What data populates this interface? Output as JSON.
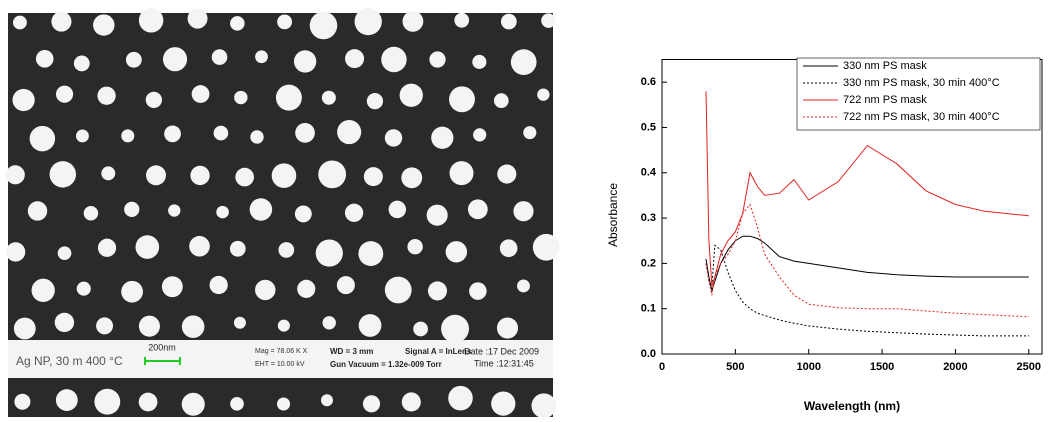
{
  "sem_image": {
    "caption": "Ag NP, 30 m 400 °C",
    "scale_bar": "200nm",
    "mag": "Mag = 78.06 K X",
    "eht": "EHT = 10.00 kV",
    "wd": "WD = 3 mm",
    "signal": "Signal A = InLens",
    "date": "Date :17 Dec 2009",
    "vacuum": "Gun Vacuum = 1.32e-009 Torr",
    "time": "Time :12:31:45"
  },
  "chart_data": {
    "type": "line",
    "x_label": "Wavelength (nm)",
    "y_label": "Absorbance",
    "x": [
      300,
      320,
      340,
      360,
      400,
      450,
      500,
      550,
      600,
      650,
      700,
      800,
      900,
      1000,
      1200,
      1400,
      1600,
      1800,
      2000,
      2200,
      2500
    ],
    "series": [
      {
        "name": "330 nm PS mask",
        "color": "#000000",
        "dashed": false,
        "values": [
          0.21,
          0.17,
          0.14,
          0.16,
          0.2,
          0.23,
          0.25,
          0.26,
          0.26,
          0.255,
          0.245,
          0.215,
          0.205,
          0.2,
          0.19,
          0.18,
          0.175,
          0.172,
          0.17,
          0.17,
          0.17
        ]
      },
      {
        "name": "330 nm PS mask, 30 min 400°C",
        "color": "#000000",
        "dashed": true,
        "values": [
          0.2,
          0.16,
          0.15,
          0.24,
          0.23,
          0.18,
          0.14,
          0.115,
          0.1,
          0.09,
          0.085,
          0.075,
          0.068,
          0.062,
          0.055,
          0.05,
          0.047,
          0.044,
          0.042,
          0.04,
          0.04
        ]
      },
      {
        "name": "722 nm PS mask",
        "color": "#e02020",
        "dashed": false,
        "values": [
          0.58,
          0.25,
          0.15,
          0.17,
          0.22,
          0.25,
          0.27,
          0.31,
          0.4,
          0.37,
          0.35,
          0.355,
          0.385,
          0.34,
          0.38,
          0.46,
          0.42,
          0.36,
          0.33,
          0.315,
          0.305
        ]
      },
      {
        "name": "722 nm PS mask, 30 min 400°C",
        "color": "#e02020",
        "dashed": true,
        "values": [
          0.2,
          0.16,
          0.13,
          0.17,
          0.2,
          0.22,
          0.25,
          0.31,
          0.33,
          0.28,
          0.22,
          0.17,
          0.13,
          0.11,
          0.102,
          0.1,
          0.1,
          0.095,
          0.09,
          0.087,
          0.082
        ]
      }
    ],
    "xlim": [
      0,
      2590
    ],
    "xticks": [
      0,
      500,
      1000,
      1500,
      2000,
      2500
    ],
    "ylim": [
      0,
      0.65
    ],
    "yticks": [
      {
        "value": 0,
        "label": "0.0"
      },
      0.1,
      0.2,
      0.3,
      0.4,
      0.5,
      0.6
    ]
  }
}
